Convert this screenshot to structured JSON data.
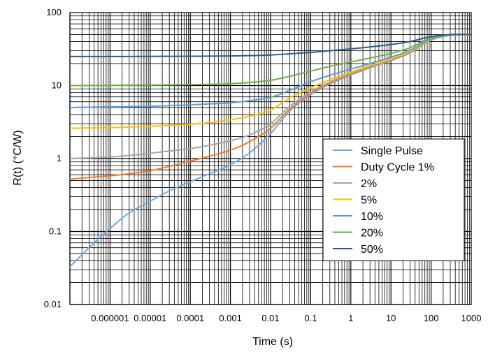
{
  "chart_data": {
    "type": "line",
    "title": "",
    "xlabel": "Time (s)",
    "ylabel": "R(t) (°C/W)",
    "x_scale": "log",
    "y_scale": "log",
    "xlim": [
      1e-07,
      1000
    ],
    "ylim": [
      0.01,
      100
    ],
    "x_ticks": [
      1e-06,
      1e-05,
      0.0001,
      0.001,
      0.01,
      0.1,
      1,
      10,
      100,
      1000
    ],
    "x_tick_labels": [
      "0.000001",
      "0.00001",
      "0.0001",
      "0.001",
      "0.01",
      "0.1",
      "1",
      "10",
      "100",
      "1000"
    ],
    "y_ticks": [
      0.01,
      0.1,
      1,
      10,
      100
    ],
    "y_tick_labels": [
      "0.01",
      "0.1",
      "1",
      "10",
      "100"
    ],
    "grid": true,
    "legend_position": "right",
    "series": [
      {
        "name": "Single Pulse",
        "color": "#6FA8DC",
        "x": [
          1e-07,
          3e-07,
          1e-06,
          3e-06,
          1e-05,
          3e-05,
          0.0001,
          0.0003,
          0.001,
          0.003,
          0.01,
          0.03,
          0.1,
          0.3,
          1,
          3,
          10,
          30,
          100,
          300,
          1000
        ],
        "y": [
          0.033,
          0.06,
          0.11,
          0.18,
          0.26,
          0.36,
          0.48,
          0.62,
          0.82,
          1.2,
          2.2,
          4.5,
          7.5,
          10.5,
          14,
          17.5,
          22,
          28,
          42,
          49,
          50
        ]
      },
      {
        "name": "Duty Cycle 1%",
        "color": "#ED7D31",
        "x": [
          1e-07,
          3e-07,
          1e-06,
          3e-06,
          1e-05,
          3e-05,
          0.0001,
          0.0003,
          0.001,
          0.003,
          0.01,
          0.03,
          0.1,
          0.3,
          1,
          3,
          10,
          30,
          100,
          300,
          1000
        ],
        "y": [
          0.52,
          0.55,
          0.58,
          0.62,
          0.68,
          0.78,
          0.92,
          1.08,
          1.3,
          1.7,
          2.6,
          4.8,
          7.8,
          10.8,
          14.2,
          17.8,
          22.3,
          28.5,
          42,
          49,
          50
        ]
      },
      {
        "name": "2%",
        "color": "#A5A5A5",
        "x": [
          1e-07,
          3e-07,
          1e-06,
          3e-06,
          1e-05,
          3e-05,
          0.0001,
          0.0003,
          0.001,
          0.003,
          0.01,
          0.03,
          0.1,
          0.3,
          1,
          3,
          10,
          30,
          100,
          300,
          1000
        ],
        "y": [
          1.0,
          1.02,
          1.05,
          1.1,
          1.18,
          1.27,
          1.37,
          1.52,
          1.75,
          2.1,
          3.0,
          5.2,
          8.2,
          11.2,
          14.6,
          18.2,
          22.8,
          29,
          42.5,
          49,
          50
        ]
      },
      {
        "name": "5%",
        "color": "#FFC000",
        "x": [
          1e-07,
          3e-07,
          1e-06,
          3e-06,
          1e-05,
          3e-05,
          0.0001,
          0.0003,
          0.001,
          0.003,
          0.01,
          0.03,
          0.1,
          0.3,
          1,
          3,
          10,
          30,
          100,
          300,
          1000
        ],
        "y": [
          2.6,
          2.62,
          2.65,
          2.7,
          2.75,
          2.85,
          2.95,
          3.1,
          3.4,
          3.8,
          4.6,
          6.8,
          9.3,
          12,
          15.3,
          18.8,
          23.3,
          29.5,
          43,
          49,
          50
        ]
      },
      {
        "name": "10%",
        "color": "#5B9BD5",
        "x": [
          1e-07,
          3e-07,
          1e-06,
          3e-06,
          1e-05,
          3e-05,
          0.0001,
          0.0003,
          0.001,
          0.003,
          0.01,
          0.03,
          0.1,
          0.3,
          1,
          3,
          10,
          30,
          100,
          300,
          1000
        ],
        "y": [
          5.0,
          5.05,
          5.1,
          5.15,
          5.2,
          5.3,
          5.45,
          5.6,
          5.8,
          6.2,
          6.9,
          8.6,
          11.3,
          13.8,
          16.8,
          20,
          24.5,
          30.5,
          43.5,
          49,
          50
        ]
      },
      {
        "name": "20%",
        "color": "#70AD47",
        "x": [
          1e-07,
          3e-07,
          1e-06,
          3e-06,
          1e-05,
          3e-05,
          0.0001,
          0.0003,
          0.001,
          0.003,
          0.01,
          0.03,
          0.1,
          0.3,
          1,
          3,
          10,
          30,
          100,
          300,
          1000
        ],
        "y": [
          10.0,
          10.02,
          10.05,
          10.1,
          10.15,
          10.2,
          10.3,
          10.4,
          10.6,
          11.0,
          11.8,
          13.4,
          15.8,
          18.3,
          21,
          23.8,
          27.5,
          33,
          45,
          49.5,
          50
        ]
      },
      {
        "name": "50%",
        "color": "#2E5A8A",
        "x": [
          1e-07,
          3e-07,
          1e-06,
          3e-06,
          1e-05,
          3e-05,
          0.0001,
          0.0003,
          0.001,
          0.003,
          0.01,
          0.03,
          0.1,
          0.3,
          1,
          3,
          10,
          30,
          100,
          300,
          1000
        ],
        "y": [
          25.0,
          25.0,
          25.0,
          25.05,
          25.1,
          25.15,
          25.2,
          25.3,
          25.45,
          25.7,
          26.2,
          27.2,
          28.5,
          30,
          31.8,
          33.8,
          36.5,
          40,
          47,
          50,
          50
        ]
      }
    ]
  }
}
